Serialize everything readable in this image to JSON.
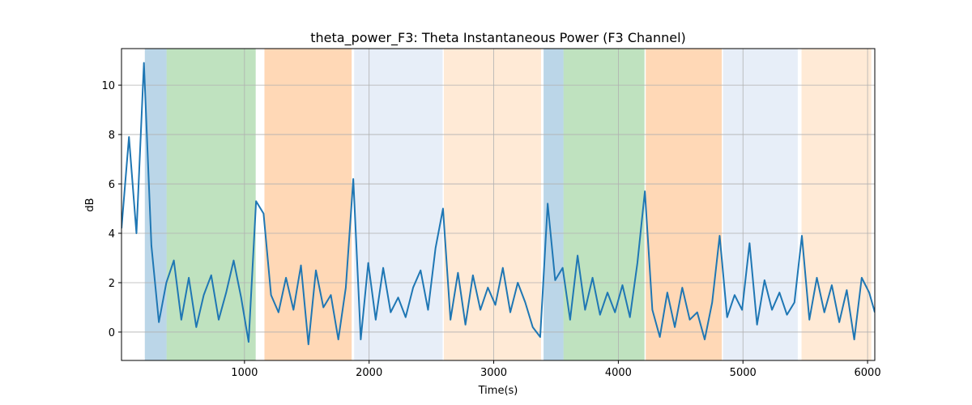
{
  "chart_data": {
    "type": "line",
    "title": "theta_power_F3: Theta Instantaneous Power (F3 Channel)",
    "xlabel": "Time(s)",
    "ylabel": "dB",
    "x": [
      13,
      73,
      133,
      193,
      253,
      313,
      373,
      433,
      493,
      553,
      613,
      673,
      733,
      793,
      853,
      913,
      973,
      1033,
      1093,
      1153,
      1213,
      1273,
      1333,
      1393,
      1453,
      1513,
      1573,
      1633,
      1693,
      1753,
      1813,
      1873,
      1933,
      1993,
      2053,
      2113,
      2173,
      2233,
      2293,
      2353,
      2413,
      2473,
      2533,
      2593,
      2653,
      2713,
      2773,
      2833,
      2893,
      2953,
      3013,
      3073,
      3133,
      3193,
      3253,
      3313,
      3373,
      3433,
      3493,
      3553,
      3613,
      3673,
      3733,
      3793,
      3853,
      3913,
      3973,
      4033,
      4093,
      4153,
      4213,
      4273,
      4333,
      4393,
      4453,
      4513,
      4573,
      4633,
      4693,
      4753,
      4813,
      4873,
      4933,
      4993,
      5053,
      5113,
      5173,
      5233,
      5293,
      5353,
      5413,
      5473,
      5533,
      5593,
      5653,
      5713,
      5773,
      5833,
      5893,
      5953,
      6013,
      6058
    ],
    "series": [
      {
        "color": "#1f77b4",
        "values": [
          4.2,
          7.9,
          4.0,
          10.9,
          3.5,
          0.4,
          2.0,
          2.9,
          0.5,
          2.2,
          0.2,
          1.5,
          2.3,
          0.5,
          1.6,
          2.9,
          1.4,
          -0.4,
          5.3,
          4.8,
          1.5,
          0.8,
          2.2,
          0.9,
          2.7,
          -0.5,
          2.5,
          1.0,
          1.5,
          -0.3,
          1.8,
          6.2,
          -0.3,
          2.8,
          0.5,
          2.6,
          0.8,
          1.4,
          0.6,
          1.8,
          2.5,
          0.9,
          3.4,
          5.0,
          0.5,
          2.4,
          0.3,
          2.3,
          0.9,
          1.8,
          1.1,
          2.6,
          0.8,
          2.0,
          1.2,
          0.2,
          -0.2,
          5.2,
          2.1,
          2.6,
          0.5,
          3.1,
          0.9,
          2.2,
          0.7,
          1.6,
          0.8,
          1.9,
          0.6,
          2.8,
          5.7,
          0.9,
          -0.2,
          1.6,
          0.2,
          1.8,
          0.5,
          0.8,
          -0.3,
          1.2,
          3.9,
          0.6,
          1.5,
          0.9,
          3.6,
          0.3,
          2.1,
          0.9,
          1.6,
          0.7,
          1.2,
          3.9,
          0.5,
          2.2,
          0.8,
          1.9,
          0.4,
          1.7,
          -0.3,
          2.2,
          1.6,
          0.8
        ]
      }
    ],
    "spans": [
      {
        "x": [
          200,
          375
        ],
        "color": "#1f77b4"
      },
      {
        "x": [
          375,
          1090
        ],
        "color": "#2ca02c"
      },
      {
        "x": [
          1160,
          1860
        ],
        "color": "#ff7f0e"
      },
      {
        "x": [
          1880,
          2590
        ],
        "color": "#aec7e8"
      },
      {
        "x": [
          2600,
          3380
        ],
        "color": "#ffbb78"
      },
      {
        "x": [
          3400,
          3560
        ],
        "color": "#1f77b4"
      },
      {
        "x": [
          3560,
          4210
        ],
        "color": "#2ca02c"
      },
      {
        "x": [
          4220,
          4830
        ],
        "color": "#ff7f0e"
      },
      {
        "x": [
          4840,
          5440
        ],
        "color": "#aec7e8"
      },
      {
        "x": [
          5470,
          6030
        ],
        "color": "#ffbb78"
      }
    ],
    "span_alpha": 0.3,
    "xlim": [
      13,
      6058
    ],
    "ylim": [
      -1.15,
      11.48
    ],
    "xticks": [
      1000,
      2000,
      3000,
      4000,
      5000,
      6000
    ],
    "yticks": [
      0,
      2,
      4,
      6,
      8,
      10
    ],
    "grid": true
  }
}
